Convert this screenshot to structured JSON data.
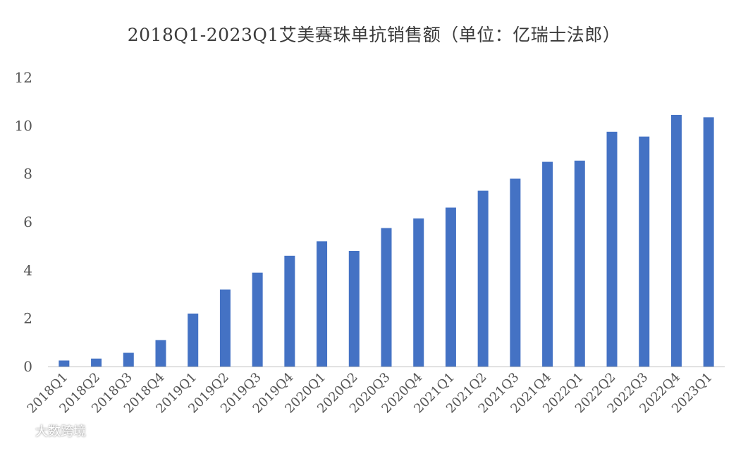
{
  "chart_data": {
    "type": "bar",
    "title": "2018Q1-2023Q1艾美赛珠单抗销售额（单位：亿瑞士法郎）",
    "xlabel": "",
    "ylabel": "",
    "ylim": [
      0,
      12
    ],
    "yticks": [
      "0",
      "2",
      "4",
      "6",
      "8",
      "10",
      "12"
    ],
    "grid": false,
    "legend": "none",
    "bar_color": "#4472C4",
    "categories": [
      "2018Q1",
      "2018Q2",
      "2018Q3",
      "2018Q4",
      "2019Q1",
      "2019Q2",
      "2019Q3",
      "2019Q4",
      "2020Q1",
      "2020Q2",
      "2020Q3",
      "2020Q4",
      "2021Q1",
      "2021Q2",
      "2021Q3",
      "2021Q4",
      "2022Q1",
      "2022Q2",
      "2022Q3",
      "2022Q4",
      "2023Q1"
    ],
    "values": [
      0.25,
      0.33,
      0.57,
      1.1,
      2.2,
      3.2,
      3.9,
      4.6,
      5.2,
      4.8,
      5.75,
      6.15,
      6.6,
      7.3,
      7.8,
      8.5,
      8.55,
      9.75,
      9.55,
      10.45,
      10.35
    ]
  },
  "watermark": {
    "text": "大数跨境",
    "icon": "logo-icon"
  }
}
